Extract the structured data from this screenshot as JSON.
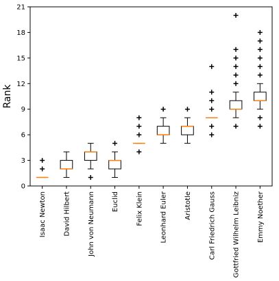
{
  "chart_data": {
    "type": "box",
    "ylabel": "Rank",
    "ylim": [
      0,
      21
    ],
    "yticks": [
      0,
      3,
      6,
      9,
      12,
      15,
      18,
      21
    ],
    "categories": [
      "Isaac Newton",
      "David Hilbert",
      "John von Neumann",
      "Euclid",
      "Felix Klein",
      "Leonhard Euler",
      "Aristotle",
      "Carl Friedrich Gauss",
      "Gottfried Wilhelm Leibniz",
      "Emmy Noether"
    ],
    "boxes": [
      {
        "q1": 1,
        "median": 1,
        "q3": 1,
        "whisker_low": 1,
        "whisker_high": 1,
        "outliers": [
          2,
          3
        ]
      },
      {
        "q1": 2,
        "median": 2,
        "q3": 3,
        "whisker_low": 1,
        "whisker_high": 4,
        "outliers": []
      },
      {
        "q1": 3,
        "median": 4,
        "q3": 4,
        "whisker_low": 2,
        "whisker_high": 5,
        "outliers": [
          1
        ]
      },
      {
        "q1": 2,
        "median": 3,
        "q3": 3,
        "whisker_low": 1,
        "whisker_high": 4,
        "outliers": [
          5
        ]
      },
      {
        "q1": 5,
        "median": 5,
        "q3": 5,
        "whisker_low": 5,
        "whisker_high": 5,
        "outliers": [
          4,
          6,
          7,
          8
        ]
      },
      {
        "q1": 6,
        "median": 6,
        "q3": 7,
        "whisker_low": 5,
        "whisker_high": 8,
        "outliers": [
          9
        ]
      },
      {
        "q1": 6,
        "median": 7,
        "q3": 7,
        "whisker_low": 5,
        "whisker_high": 8,
        "outliers": [
          9
        ]
      },
      {
        "q1": 8,
        "median": 8,
        "q3": 8,
        "whisker_low": 8,
        "whisker_high": 8,
        "outliers": [
          6,
          7,
          9,
          10,
          11,
          14
        ]
      },
      {
        "q1": 9,
        "median": 9,
        "q3": 10,
        "whisker_low": 8,
        "whisker_high": 11,
        "outliers": [
          7,
          12,
          13,
          14,
          15,
          16,
          20
        ]
      },
      {
        "q1": 10,
        "median": 10,
        "q3": 11,
        "whisker_low": 9,
        "whisker_high": 12,
        "outliers": [
          7,
          8,
          13,
          14,
          15,
          16,
          17,
          18
        ]
      }
    ],
    "colors": {
      "box": "#000000",
      "median": "#ff7f0e",
      "outlier": "#000000"
    },
    "grid": false
  }
}
